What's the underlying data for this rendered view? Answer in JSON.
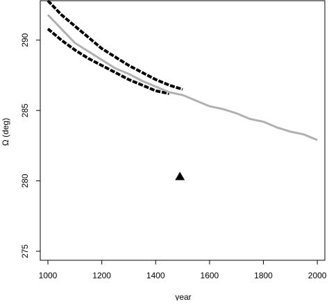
{
  "chart_data": {
    "type": "line",
    "x_label": "year",
    "y_label": "Ω (deg)",
    "x": [
      1000,
      1050,
      1100,
      1150,
      1200,
      1250,
      1300,
      1350,
      1400,
      1450,
      1500,
      1550,
      1600,
      1650,
      1700,
      1750,
      1800,
      1850,
      1900,
      1950,
      2000
    ],
    "series": [
      {
        "color": "#000000",
        "dashed": true,
        "values": [
          292.8,
          291.8,
          291.0,
          290.2,
          289.4,
          288.8,
          288.2,
          287.7,
          287.2,
          286.8,
          286.5,
          null,
          null,
          null,
          null,
          null,
          null,
          null,
          null,
          null,
          null
        ]
      },
      {
        "color": "#000000",
        "dashed": true,
        "values": [
          290.8,
          290.0,
          289.3,
          288.7,
          288.2,
          287.7,
          287.2,
          286.8,
          286.4,
          286.2,
          null,
          null,
          null,
          null,
          null,
          null,
          null,
          null,
          null,
          null,
          null
        ]
      },
      {
        "color": "#b0b0b0",
        "dashed": false,
        "values": [
          291.8,
          290.8,
          289.8,
          289.2,
          288.6,
          288.0,
          287.6,
          287.1,
          286.7,
          286.3,
          286.1,
          285.7,
          285.3,
          285.1,
          284.8,
          284.4,
          284.2,
          283.8,
          283.5,
          283.3,
          282.9
        ]
      }
    ],
    "points": {
      "x": [
        1490
      ],
      "y": [
        280.3
      ],
      "color": "#000000",
      "marker": "triangle"
    },
    "xlim": [
      971.6,
      2028
    ],
    "ylim": [
      274.36,
      292.8
    ],
    "xticks": [
      1000,
      1200,
      1400,
      1600,
      1800,
      2000
    ],
    "yticks": [
      275,
      280,
      285,
      290
    ]
  }
}
